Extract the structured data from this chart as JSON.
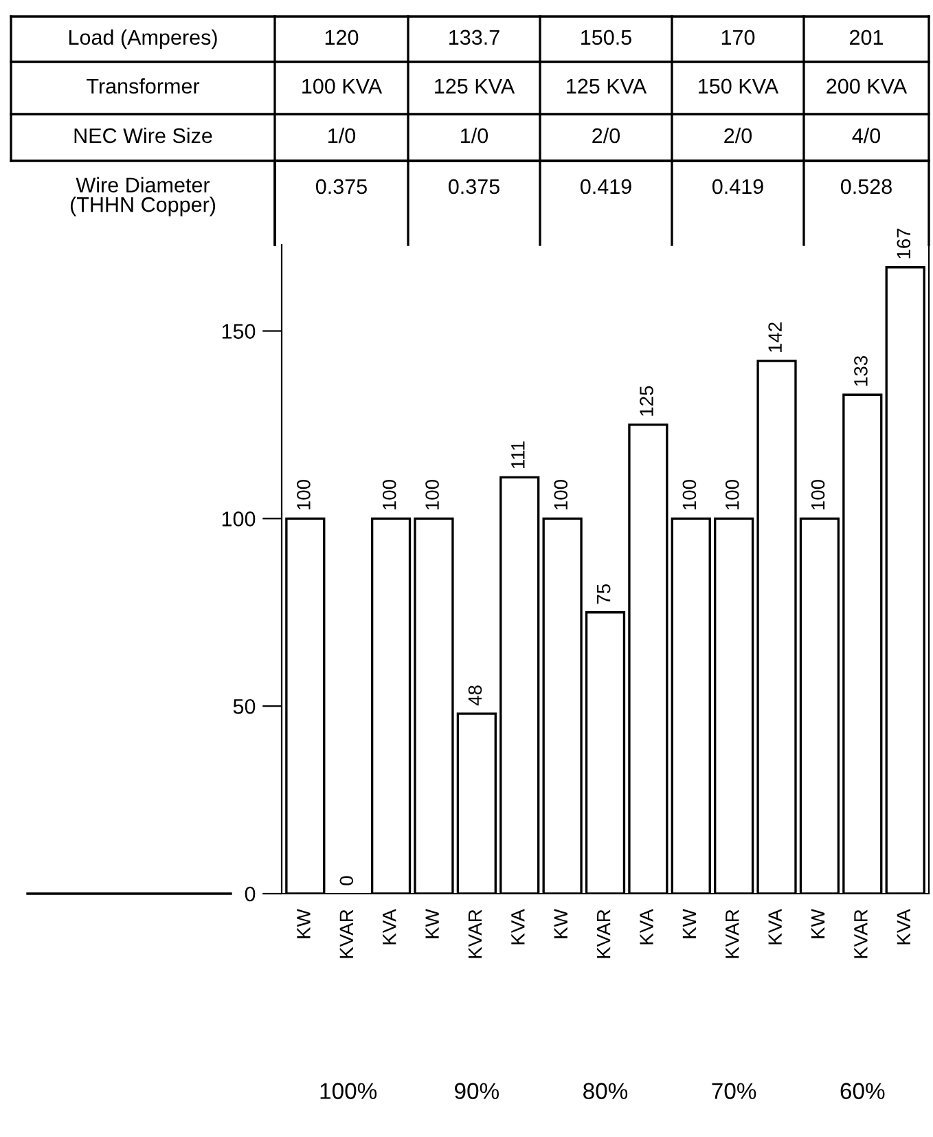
{
  "chart_data": {
    "type": "bar",
    "categories": [
      "KW",
      "KVAR",
      "KVA",
      "KW",
      "KVAR",
      "KVA",
      "KW",
      "KVAR",
      "KVA",
      "KW",
      "KVAR",
      "KVA",
      "KW",
      "KVAR",
      "KVA"
    ],
    "values": [
      100,
      0,
      100,
      100,
      48,
      111,
      100,
      75,
      125,
      100,
      100,
      142,
      100,
      133,
      167
    ],
    "color": "#ffffff",
    "ylim": [
      0,
      173
    ],
    "yticks": [
      0,
      50,
      100,
      150
    ],
    "data_labels": true,
    "grid": false,
    "legend": false,
    "annotations": [
      "Load (Amperes)",
      "120",
      "133.7",
      "150.5",
      "170",
      "201",
      "Transformer",
      "100 KVA",
      "125 KVA",
      "125 KVA",
      "150 KVA",
      "200 KVA",
      "NEC Wire Size",
      "1/0",
      "1/0",
      "2/0",
      "2/0",
      "4/0",
      "Wire Diameter\n(THHN Copper)",
      "0.375",
      "0.375",
      "0.419",
      "0.419",
      "0.528",
      "100%",
      "90%",
      "80%",
      "70%",
      "60%"
    ]
  }
}
